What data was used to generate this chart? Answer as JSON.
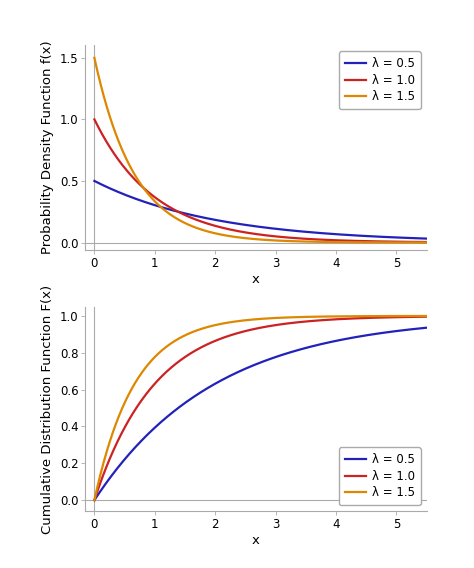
{
  "lambdas": [
    0.5,
    1.0,
    1.5
  ],
  "colors": [
    "#2222bb",
    "#cc2222",
    "#dd8800"
  ],
  "line_labels": [
    "λ = 0.5",
    "λ = 1.0",
    "λ = 1.5"
  ],
  "x_min": -0.15,
  "x_max": 5.5,
  "pdf_ylim": [
    -0.06,
    1.6
  ],
  "cdf_ylim": [
    -0.06,
    1.05
  ],
  "pdf_yticks": [
    0.0,
    0.5,
    1.0,
    1.5
  ],
  "cdf_yticks": [
    0.0,
    0.2,
    0.4,
    0.6,
    0.8,
    1.0
  ],
  "x_ticks": [
    0,
    1,
    2,
    3,
    4,
    5
  ],
  "pdf_ylabel": "Probability Density Function f(x)",
  "cdf_ylabel": "Cumulative Distribution Function F(x)",
  "xlabel": "x",
  "background_color": "#ffffff",
  "plot_bg_color": "#ffffff",
  "line_width": 1.6,
  "legend_fontsize": 8.5,
  "axis_label_fontsize": 9.5,
  "tick_fontsize": 8.5,
  "spine_color": "#aaaaaa",
  "spine_linewidth": 0.8
}
